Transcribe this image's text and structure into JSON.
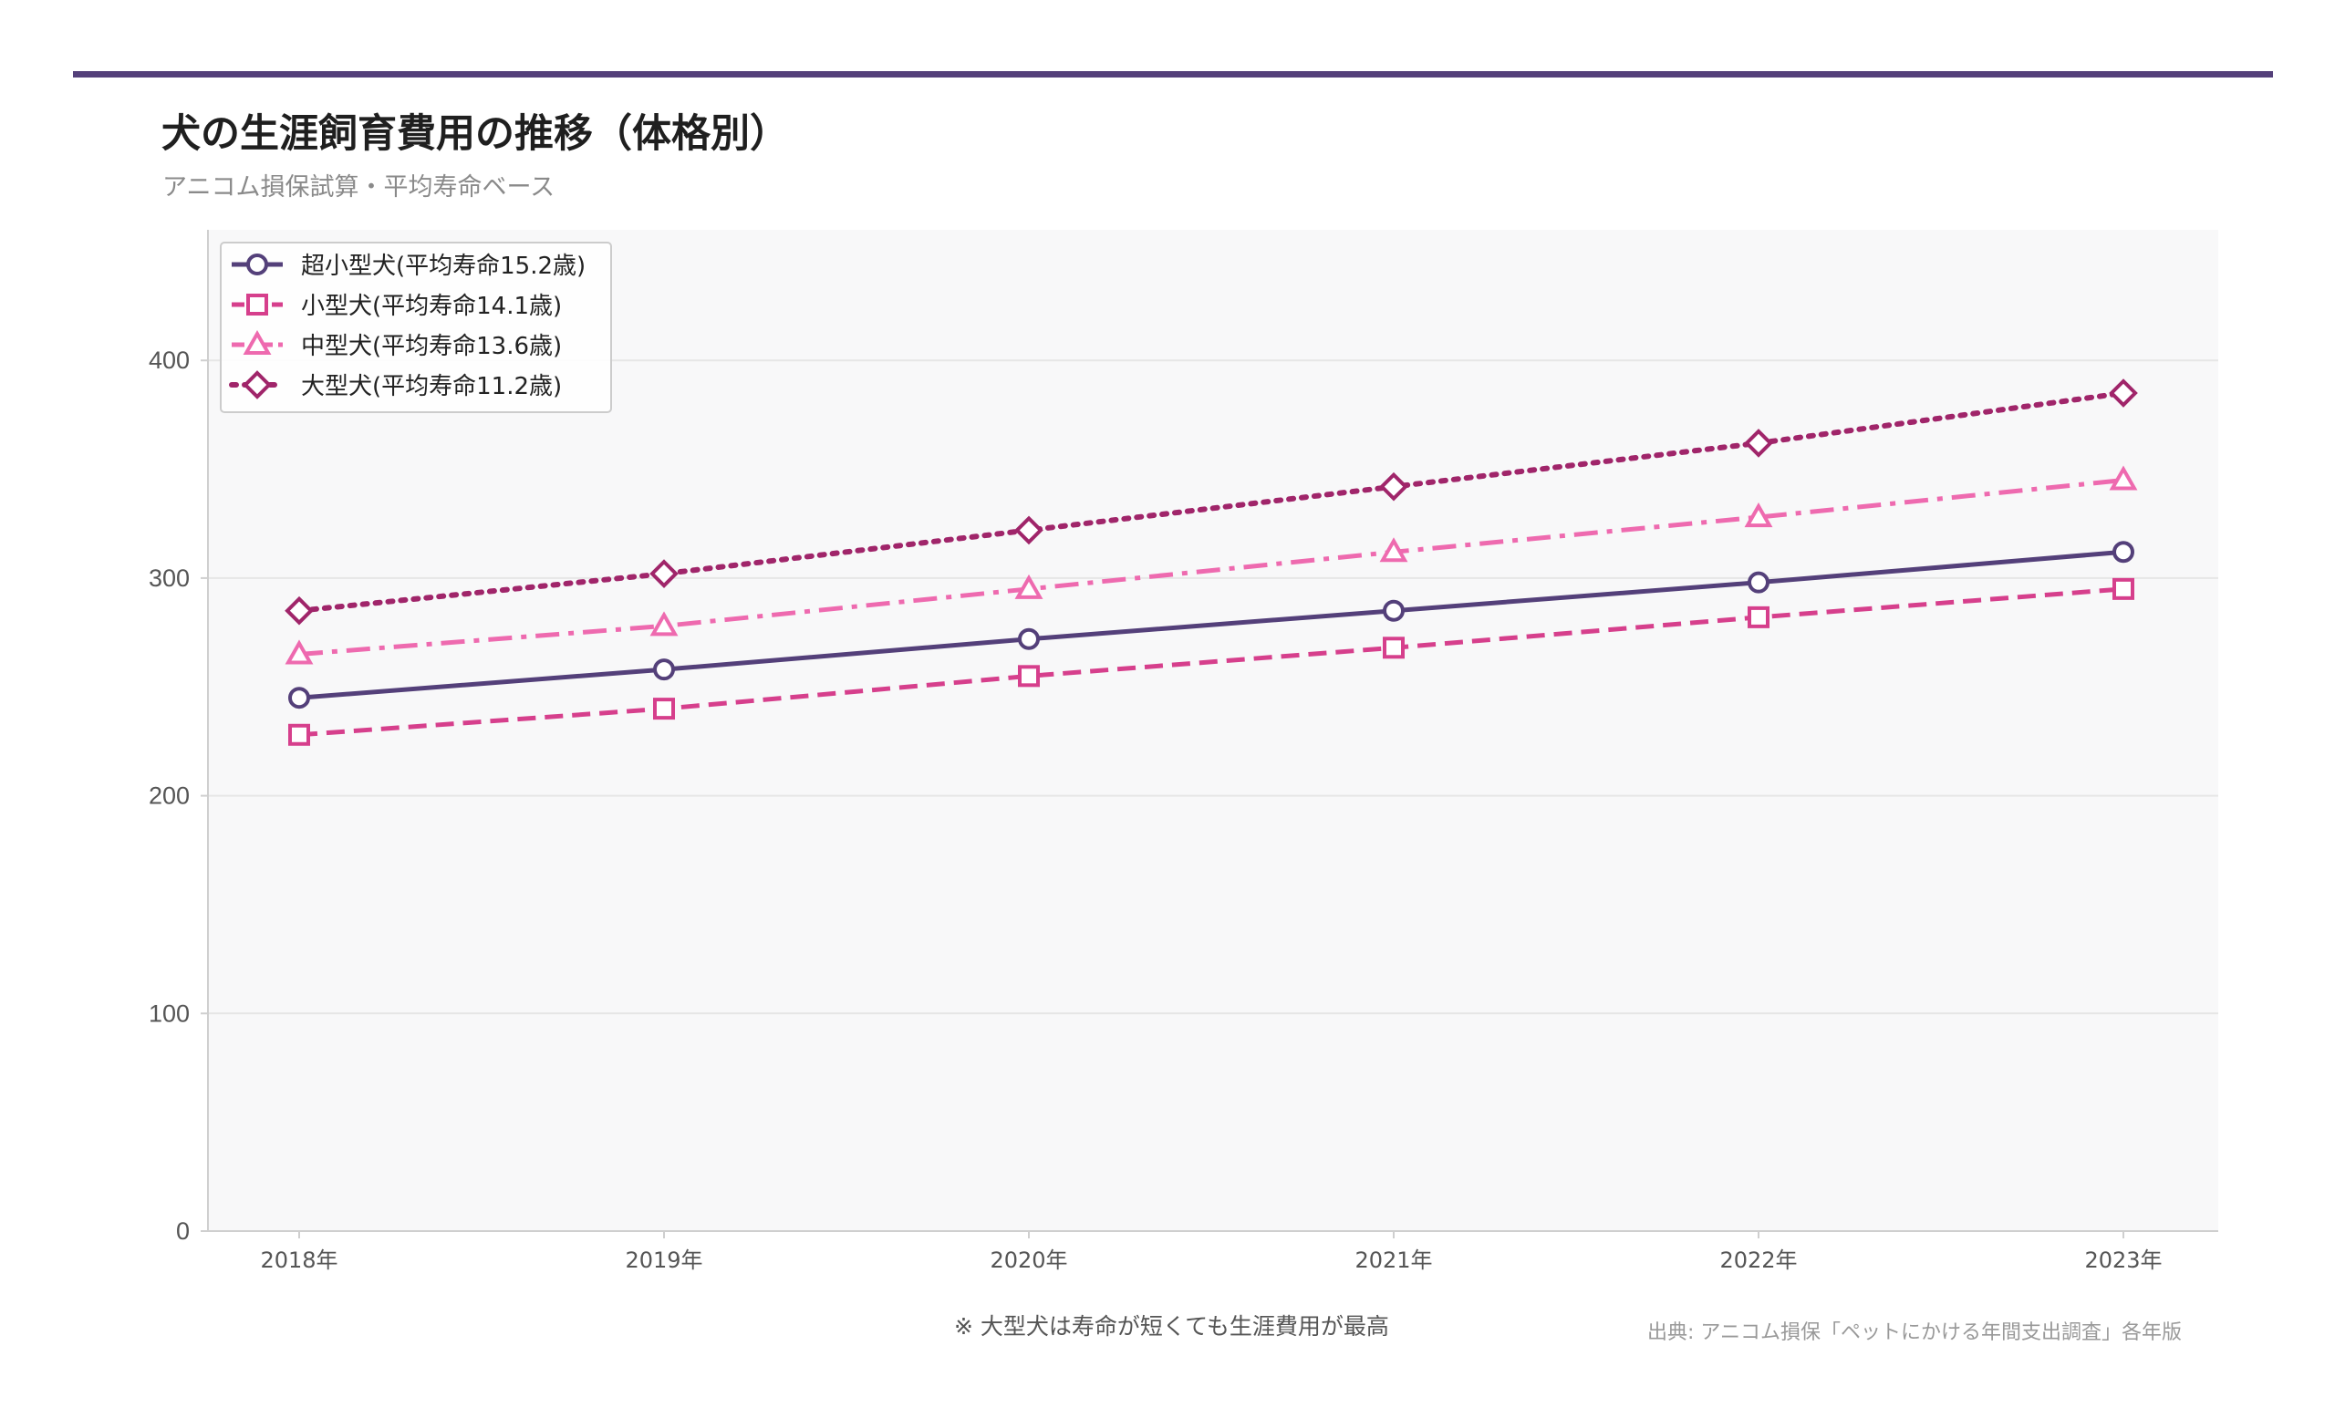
{
  "title": "犬の生涯飼育費用の推移（体格別）",
  "subtitle": "アニコム損保試算・平均寿命ベース",
  "note": "※ 大型犬は寿命が短くても生涯費用が最高",
  "source": "出典: アニコム損保「ペットにかける年間支出調査」各年版",
  "colors": {
    "accent_bar": "#54407a",
    "plot_bg": "#f8f8f9",
    "grid": "#e6e6e6"
  },
  "chart_data": {
    "type": "line",
    "title": "犬の生涯飼育費用の推移（体格別）",
    "xlabel": "",
    "ylabel": "",
    "categories": [
      "2018年",
      "2019年",
      "2020年",
      "2021年",
      "2022年",
      "2023年"
    ],
    "ylim": [
      0,
      460
    ],
    "yticks": [
      0,
      100,
      200,
      300,
      400
    ],
    "grid": true,
    "legend_position": "top-left",
    "series": [
      {
        "name": "超小型犬(平均寿命15.2歳)",
        "values": [
          245,
          258,
          272,
          285,
          298,
          312
        ],
        "color": "#54407a",
        "marker": "circle",
        "dash": "solid"
      },
      {
        "name": "小型犬(平均寿命14.1歳)",
        "values": [
          228,
          240,
          255,
          268,
          282,
          295
        ],
        "color": "#d63f8c",
        "marker": "square",
        "dash": "dashed"
      },
      {
        "name": "中型犬(平均寿命13.6歳)",
        "values": [
          265,
          278,
          295,
          312,
          328,
          345
        ],
        "color": "#ee6aaf",
        "marker": "triangle",
        "dash": "dashdot"
      },
      {
        "name": "大型犬(平均寿命11.2歳)",
        "values": [
          285,
          302,
          322,
          342,
          362,
          385
        ],
        "color": "#a0256a",
        "marker": "diamond",
        "dash": "dotted"
      }
    ]
  }
}
